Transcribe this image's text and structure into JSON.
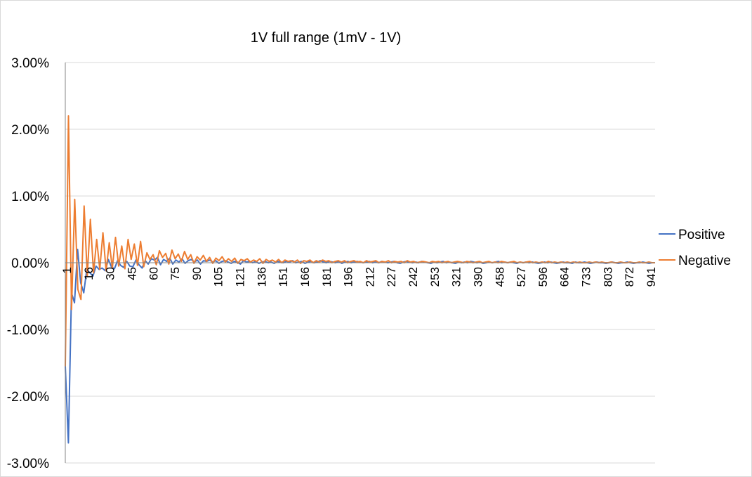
{
  "chart_data": {
    "type": "line",
    "title": "1V full range (1mV - 1V)",
    "xlabel": "",
    "ylabel": "",
    "ylim": [
      -0.03,
      0.03
    ],
    "y_tick_labels": [
      "3.00%",
      "2.00%",
      "1.00%",
      "0.00%",
      "-1.00%",
      "-2.00%",
      "-3.00%"
    ],
    "x_tick_labels": [
      "1",
      "16",
      "30",
      "45",
      "60",
      "75",
      "90",
      "105",
      "121",
      "136",
      "151",
      "166",
      "181",
      "196",
      "212",
      "227",
      "242",
      "253",
      "321",
      "390",
      "458",
      "527",
      "596",
      "664",
      "733",
      "803",
      "872",
      "941"
    ],
    "grid": true,
    "legend_position": "right",
    "series": [
      {
        "name": "Positive",
        "color": "#4472C4",
        "values": [
          -0.0155,
          -0.027,
          -0.0045,
          -0.006,
          0.002,
          -0.003,
          -0.0045,
          -0.001,
          -0.0015,
          -0.002,
          -0.0005,
          -0.001,
          -0.0008,
          -0.0012,
          0.0005,
          -0.0006,
          -0.0009,
          0.0003,
          -0.0004,
          -0.0007,
          0.0002,
          -0.0005,
          -0.0006,
          0.0004,
          -0.0003,
          -0.0008,
          0.0003,
          -0.0002,
          0.0006,
          0.0004,
          0.0008,
          -0.0003,
          0.0005,
          0.0002,
          0.0007,
          -0.0002,
          0.0004,
          0.0001,
          0.0006,
          -0.0001,
          0.0003,
          0.0005,
          0.0001,
          0.0004,
          -0.0002,
          0.0003,
          0.0002,
          0.0004,
          0.0001,
          0.0003,
          -0.0001,
          0.0002,
          0.0003,
          0.0001,
          -0.0001,
          0.0002,
          0.0001,
          -0.0002,
          0.0003,
          0.0001,
          0.0002,
          0.0,
          0.0002,
          -0.0001,
          0.0001,
          0.0002,
          0.0,
          0.0001,
          -0.0001,
          0.0002,
          0.0001,
          0.0,
          0.0002,
          0.0001,
          0.0003,
          0.0,
          0.0001,
          0.0002,
          -0.0001,
          0.0001,
          0.0002,
          0.0,
          0.0001,
          0.0003,
          0.0001,
          0.0,
          0.0002,
          0.0001,
          0.0,
          0.0002,
          -0.0001,
          0.0001,
          0.0002,
          0.0,
          0.0001,
          0.0002,
          0.0001,
          0.0,
          0.0001,
          0.0002,
          0.0,
          0.0001,
          0.0,
          0.0002,
          0.0001,
          0.0,
          0.0001,
          0.0002,
          0.0,
          -0.0001,
          0.0001,
          0.0002,
          0.0001,
          0.0,
          0.0001,
          0.0,
          0.0002,
          0.0001,
          0.0,
          -0.0001,
          0.0001,
          0.0,
          0.0001,
          0.0002,
          0.0,
          0.0001,
          0.0,
          -0.0001,
          0.0001,
          0.0,
          0.0001,
          0.0,
          0.0002,
          0.0001,
          0.0,
          0.0001,
          -0.0001,
          0.0,
          0.0001,
          0.0,
          0.0001,
          0.0002,
          0.0,
          0.0001,
          0.0,
          0.0001,
          0.0,
          -0.0001,
          0.0001,
          0.0,
          0.0001,
          0.0,
          0.0001,
          0.0,
          -0.0001,
          0.0,
          0.0001,
          0.0,
          0.0001,
          0.0,
          -0.0001,
          0.0,
          0.0001,
          0.0,
          0.0,
          -0.0001,
          0.0001,
          0.0,
          0.0,
          0.0001,
          0.0,
          -0.0001,
          0.0,
          0.0001,
          0.0,
          0.0,
          -0.0001,
          0.0,
          0.0001,
          0.0,
          -0.0001,
          0.0,
          0.0,
          0.0001,
          0.0,
          -0.0001,
          0.0,
          0.0,
          0.0001,
          0.0,
          -0.0001,
          0.0,
          0.0
        ]
      },
      {
        "name": "Negative",
        "color": "#ED7D31",
        "values": [
          -0.0155,
          0.022,
          -0.007,
          0.0095,
          -0.004,
          -0.0055,
          0.0085,
          -0.002,
          0.0065,
          -0.0015,
          0.0035,
          -0.001,
          0.0045,
          -0.0012,
          0.003,
          -0.0008,
          0.0038,
          -0.0005,
          0.0025,
          -0.0009,
          0.0035,
          0.0005,
          0.0028,
          -0.0004,
          0.0032,
          -0.0006,
          0.0015,
          0.0005,
          0.0012,
          -0.0003,
          0.0018,
          0.0008,
          0.0014,
          -0.0002,
          0.0019,
          0.0006,
          0.0013,
          0.0002,
          0.0017,
          0.0005,
          0.0012,
          -0.0001,
          0.0009,
          0.0004,
          0.0011,
          0.0002,
          0.0008,
          -0.0001,
          0.0007,
          0.0003,
          0.0009,
          0.0001,
          0.0006,
          0.0002,
          0.0007,
          -0.0001,
          0.0005,
          0.0003,
          0.0006,
          0.0001,
          0.0004,
          0.0002,
          0.0006,
          -0.0001,
          0.0005,
          0.0002,
          0.0004,
          0.0001,
          0.0005,
          0.0,
          0.0004,
          0.0002,
          0.0003,
          0.0001,
          0.0004,
          -0.0001,
          0.0003,
          0.0002,
          0.0004,
          0.0,
          0.0003,
          0.0001,
          0.0004,
          0.0002,
          0.0003,
          0.0,
          0.0002,
          0.0003,
          0.0001,
          0.0003,
          0.0,
          0.0002,
          0.0003,
          0.0001,
          0.0002,
          0.0,
          0.0003,
          0.0001,
          0.0002,
          0.0003,
          0.0,
          0.0002,
          0.0001,
          0.0003,
          0.0,
          0.0002,
          0.0001,
          0.0002,
          0.0,
          0.0003,
          0.0001,
          0.0002,
          0.0,
          0.0001,
          0.0002,
          0.0001,
          0.0,
          0.0002,
          0.0001,
          0.0002,
          0.0,
          0.0001,
          0.0002,
          0.0,
          0.0001,
          0.0002,
          0.0001,
          0.0,
          0.0002,
          0.0001,
          0.0,
          0.0001,
          0.0002,
          0.0,
          0.0001,
          0.0002,
          0.0,
          0.0001,
          0.0,
          0.0002,
          0.0001,
          0.0,
          0.0001,
          0.0002,
          0.0,
          0.0001,
          0.0,
          0.0001,
          0.0002,
          0.0,
          0.0001,
          0.0,
          0.0001,
          0.0,
          0.0002,
          0.0,
          0.0001,
          0.0,
          0.0001,
          0.0,
          0.0001,
          0.0,
          0.0001,
          0.0,
          0.0001,
          0.0,
          0.0,
          0.0001,
          0.0,
          0.0001,
          0.0,
          0.0001,
          0.0,
          0.0,
          0.0001,
          0.0,
          0.0,
          0.0001,
          0.0,
          0.0,
          0.0001,
          0.0,
          0.0,
          0.0001,
          0.0,
          0.0,
          0.0001,
          0.0,
          0.0
        ]
      }
    ]
  }
}
